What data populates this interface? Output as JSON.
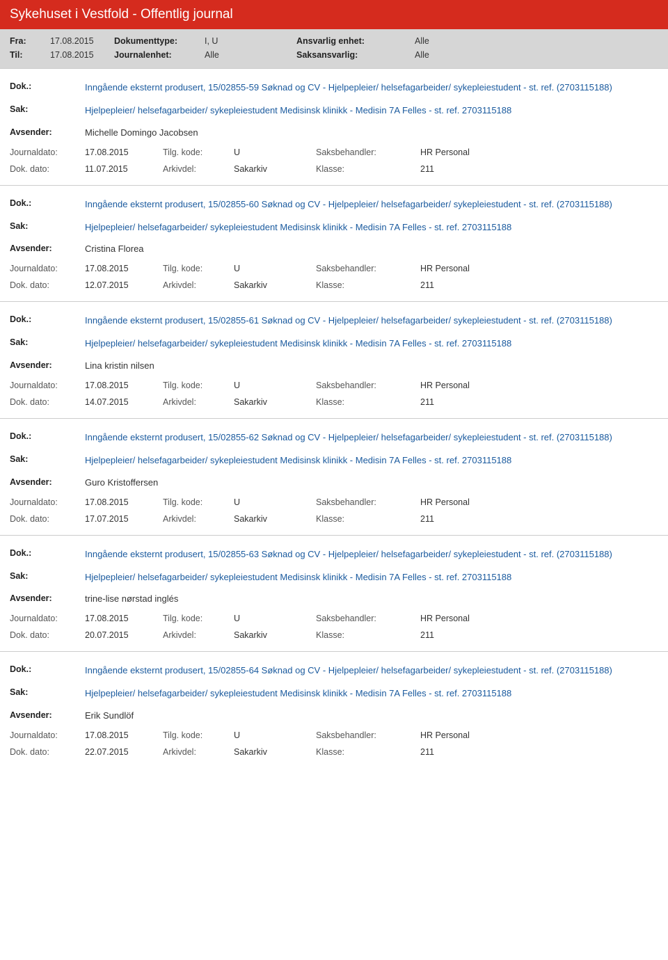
{
  "header": {
    "title": "Sykehuset i Vestfold - Offentlig journal"
  },
  "filters": {
    "fra_label": "Fra:",
    "fra_value": "17.08.2015",
    "til_label": "Til:",
    "til_value": "17.08.2015",
    "dokumenttype_label": "Dokumenttype:",
    "dokumenttype_value": "I, U",
    "journalenhet_label": "Journalenhet:",
    "journalenhet_value": "Alle",
    "ansvarlig_label": "Ansvarlig enhet:",
    "ansvarlig_value": "Alle",
    "saksansvarlig_label": "Saksansvarlig:",
    "saksansvarlig_value": "Alle"
  },
  "labels": {
    "dok": "Dok.:",
    "sak": "Sak:",
    "avsender": "Avsender:",
    "journaldato": "Journaldato:",
    "dokdato": "Dok. dato:",
    "tilgkode": "Tilg. kode:",
    "arkivdel": "Arkivdel:",
    "saksbehandler": "Saksbehandler:",
    "klasse": "Klasse:"
  },
  "entries": [
    {
      "dok": "Inngående eksternt produsert, 15/02855-59 Søknad og CV - Hjelpepleier/ helsefagarbeider/ sykepleiestudent - st. ref. (2703115188)",
      "sak": "Hjelpepleier/ helsefagarbeider/ sykepleiestudent Medisinsk klinikk - Medisin 7A Felles - st. ref. 2703115188",
      "avsender": "Michelle Domingo Jacobsen",
      "journaldato": "17.08.2015",
      "tilgkode": "U",
      "saksbehandler": "HR Personal",
      "dokdato": "11.07.2015",
      "arkivdel": "Sakarkiv",
      "klasse": "211"
    },
    {
      "dok": "Inngående eksternt produsert, 15/02855-60 Søknad og CV - Hjelpepleier/ helsefagarbeider/ sykepleiestudent - st. ref. (2703115188)",
      "sak": "Hjelpepleier/ helsefagarbeider/ sykepleiestudent Medisinsk klinikk - Medisin 7A Felles - st. ref. 2703115188",
      "avsender": "Cristina Florea",
      "journaldato": "17.08.2015",
      "tilgkode": "U",
      "saksbehandler": "HR Personal",
      "dokdato": "12.07.2015",
      "arkivdel": "Sakarkiv",
      "klasse": "211"
    },
    {
      "dok": "Inngående eksternt produsert, 15/02855-61 Søknad og CV - Hjelpepleier/ helsefagarbeider/ sykepleiestudent - st. ref. (2703115188)",
      "sak": "Hjelpepleier/ helsefagarbeider/ sykepleiestudent Medisinsk klinikk - Medisin 7A Felles - st. ref. 2703115188",
      "avsender": "Lina kristin nilsen",
      "journaldato": "17.08.2015",
      "tilgkode": "U",
      "saksbehandler": "HR Personal",
      "dokdato": "14.07.2015",
      "arkivdel": "Sakarkiv",
      "klasse": "211"
    },
    {
      "dok": "Inngående eksternt produsert, 15/02855-62 Søknad og CV - Hjelpepleier/ helsefagarbeider/ sykepleiestudent - st. ref. (2703115188)",
      "sak": "Hjelpepleier/ helsefagarbeider/ sykepleiestudent Medisinsk klinikk - Medisin 7A Felles - st. ref. 2703115188",
      "avsender": "Guro Kristoffersen",
      "journaldato": "17.08.2015",
      "tilgkode": "U",
      "saksbehandler": "HR Personal",
      "dokdato": "17.07.2015",
      "arkivdel": "Sakarkiv",
      "klasse": "211"
    },
    {
      "dok": "Inngående eksternt produsert, 15/02855-63 Søknad og CV - Hjelpepleier/ helsefagarbeider/ sykepleiestudent - st. ref. (2703115188)",
      "sak": "Hjelpepleier/ helsefagarbeider/ sykepleiestudent Medisinsk klinikk - Medisin 7A Felles - st. ref. 2703115188",
      "avsender": "trine-lise nørstad inglés",
      "journaldato": "17.08.2015",
      "tilgkode": "U",
      "saksbehandler": "HR Personal",
      "dokdato": "20.07.2015",
      "arkivdel": "Sakarkiv",
      "klasse": "211"
    },
    {
      "dok": "Inngående eksternt produsert, 15/02855-64 Søknad og CV - Hjelpepleier/ helsefagarbeider/ sykepleiestudent - st. ref. (2703115188)",
      "sak": "Hjelpepleier/ helsefagarbeider/ sykepleiestudent Medisinsk klinikk - Medisin 7A Felles - st. ref. 2703115188",
      "avsender": "Erik Sundlöf",
      "journaldato": "17.08.2015",
      "tilgkode": "U",
      "saksbehandler": "HR Personal",
      "dokdato": "22.07.2015",
      "arkivdel": "Sakarkiv",
      "klasse": "211"
    }
  ]
}
